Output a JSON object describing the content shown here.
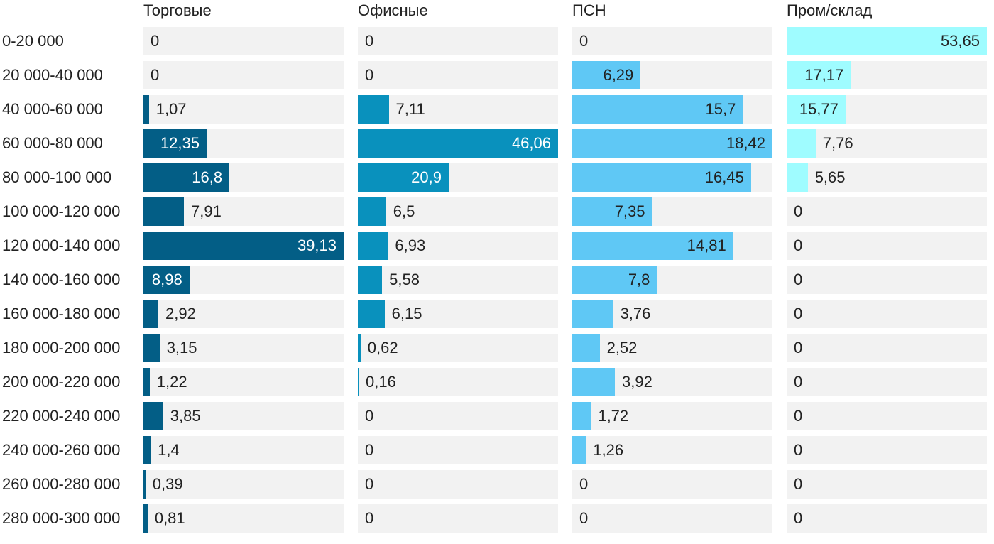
{
  "chart_data": {
    "type": "bar",
    "orientation": "horizontal",
    "layout": "small-multiples",
    "categories": [
      "0-20 000",
      "20 000-40 000",
      "40 000-60 000",
      "60 000-80 000",
      "80 000-100 000",
      "100 000-120 000",
      "120 000-140 000",
      "140 000-160 000",
      "160 000-180 000",
      "180 000-200 000",
      "200 000-220 000",
      "220 000-240 000",
      "240 000-260 000",
      "260 000-280 000",
      "280 000-300 000"
    ],
    "series": [
      {
        "name": "Торговые",
        "color": "#035e86",
        "values": [
          0,
          0,
          1.07,
          12.35,
          16.8,
          7.91,
          39.13,
          8.98,
          2.92,
          3.15,
          1.22,
          3.85,
          1.4,
          0.39,
          0.81
        ],
        "labels": [
          "0",
          "0",
          "1,07",
          "12,35",
          "16,8",
          "7,91",
          "39,13",
          "8,98",
          "2,92",
          "3,15",
          "1,22",
          "3,85",
          "1,4",
          "0,39",
          "0,81"
        ]
      },
      {
        "name": "Офисные",
        "color": "#0991bd",
        "values": [
          0,
          0,
          7.11,
          46.06,
          20.9,
          6.5,
          6.93,
          5.58,
          6.15,
          0.62,
          0.16,
          0,
          0,
          0,
          0
        ],
        "labels": [
          "0",
          "0",
          "7,11",
          "46,06",
          "20,9",
          "6,5",
          "6,93",
          "5,58",
          "6,15",
          "0,62",
          "0,16",
          "0",
          "0",
          "0",
          "0"
        ]
      },
      {
        "name": "ПСН",
        "color": "#5fc8f5",
        "values": [
          0,
          6.29,
          15.7,
          18.42,
          16.45,
          7.35,
          14.81,
          7.8,
          3.76,
          2.52,
          3.92,
          1.72,
          1.26,
          0,
          0
        ],
        "labels": [
          "0",
          "6,29",
          "15,7",
          "18,42",
          "16,45",
          "7,35",
          "14,81",
          "7,8",
          "3,76",
          "2,52",
          "3,92",
          "1,72",
          "1,26",
          "0",
          "0"
        ]
      },
      {
        "name": "Пром/склад",
        "color": "#9ffcff",
        "values": [
          53.65,
          17.17,
          15.77,
          7.76,
          5.65,
          0,
          0,
          0,
          0,
          0,
          0,
          0,
          0,
          0,
          0
        ],
        "labels": [
          "53,65",
          "17,17",
          "15,77",
          "7,76",
          "5,65",
          "0",
          "0",
          "0",
          "0",
          "0",
          "0",
          "0",
          "0",
          "0",
          "0"
        ]
      }
    ],
    "grid": false,
    "legend": "none",
    "background_track_color": "#f2f2f2"
  }
}
